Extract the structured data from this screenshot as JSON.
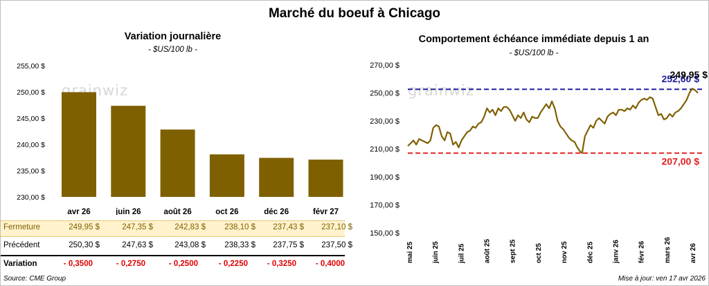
{
  "title": "Marché du boeuf à Chicago",
  "watermark": "grainwiz",
  "left_panel": {
    "title": "Variation journalière",
    "subtitle": "- $US/100 lb -"
  },
  "right_panel": {
    "title": "Comportement  échéance immédiate depuis 1 an",
    "subtitle": "- $US/100 lb -"
  },
  "table": {
    "rows": [
      {
        "label": "Fermeture",
        "values": [
          "249,95  $",
          "247,35  $",
          "242,83  $",
          "238,10  $",
          "237,43  $",
          "237,10  $"
        ]
      },
      {
        "label": "Précédent",
        "values": [
          "250,30  $",
          "247,63  $",
          "243,08  $",
          "238,33  $",
          "237,75  $",
          "237,50  $"
        ]
      },
      {
        "label": "Variation",
        "values": [
          "- 0,3500",
          "- 0,2750",
          "- 0,2500",
          "- 0,2250",
          "- 0,3250",
          "- 0,4000"
        ]
      }
    ]
  },
  "footer": {
    "source": "Source: CME Group",
    "updated": "Mise à jour: ven 17 avr 2026"
  },
  "colors": {
    "bar": "#7f6000",
    "line": "#7f6000",
    "max_line": "#1f1f9f",
    "min_line": "#e02020",
    "negative": "#e00000",
    "highlight_row": "#fff2cc"
  },
  "chart_data": [
    {
      "type": "bar",
      "categories": [
        "avr 26",
        "juin 26",
        "août 26",
        "oct 26",
        "déc 26",
        "févr 27"
      ],
      "values": [
        249.95,
        247.35,
        242.83,
        238.1,
        237.43,
        237.1
      ],
      "title": "Variation journalière",
      "subtitle": "- $US/100 lb -",
      "ylim": [
        230,
        255
      ],
      "yticks": [
        "230,00 $",
        "235,00 $",
        "240,00 $",
        "245,00 $",
        "250,00 $",
        "255,00 $"
      ],
      "grid": false
    },
    {
      "type": "line",
      "title": "Comportement  échéance immédiate depuis 1 an",
      "subtitle": "- $US/100 lb -",
      "ylim": [
        150,
        270
      ],
      "yticks": [
        "150,00 $",
        "170,00 $",
        "190,00 $",
        "210,00 $",
        "230,00 $",
        "250,00 $",
        "270,00 $"
      ],
      "xticks": [
        "mai 25",
        "juin 25",
        "juil 25",
        "août 25",
        "sept 25",
        "oct 25",
        "nov 25",
        "déc 25",
        "janv 26",
        "févr 26",
        "mars 26",
        "avr 26"
      ],
      "grid": false,
      "series": [
        {
          "values": [
            [
              0,
              212
            ],
            [
              3,
              214
            ],
            [
              6,
              216
            ],
            [
              9,
              213
            ],
            [
              12,
              217
            ],
            [
              15,
              216
            ],
            [
              18,
              215
            ],
            [
              21,
              214
            ],
            [
              24,
              216
            ],
            [
              27,
              225
            ],
            [
              30,
              227
            ],
            [
              33,
              226
            ],
            [
              36,
              219
            ],
            [
              39,
              216
            ],
            [
              42,
              222
            ],
            [
              45,
              221
            ],
            [
              48,
              213
            ],
            [
              51,
              215
            ],
            [
              54,
              211
            ],
            [
              57,
              216
            ],
            [
              60,
              219
            ],
            [
              63,
              222
            ],
            [
              66,
              223
            ],
            [
              69,
              226
            ],
            [
              72,
              225
            ],
            [
              75,
              228
            ],
            [
              78,
              229
            ],
            [
              81,
              233
            ],
            [
              84,
              239
            ],
            [
              87,
              236
            ],
            [
              90,
              238
            ],
            [
              93,
              234
            ],
            [
              96,
              239
            ],
            [
              99,
              237
            ],
            [
              102,
              240
            ],
            [
              105,
              240
            ],
            [
              108,
              238
            ],
            [
              111,
              234
            ],
            [
              114,
              230
            ],
            [
              117,
              234
            ],
            [
              120,
              232
            ],
            [
              123,
              236
            ],
            [
              126,
              231
            ],
            [
              129,
              229
            ],
            [
              132,
              233
            ],
            [
              135,
              232
            ],
            [
              138,
              232
            ],
            [
              141,
              236
            ],
            [
              144,
              239
            ],
            [
              147,
              242
            ],
            [
              150,
              239
            ],
            [
              153,
              244
            ],
            [
              156,
              239
            ],
            [
              159,
              230
            ],
            [
              162,
              226
            ],
            [
              165,
              224
            ],
            [
              168,
              221
            ],
            [
              171,
              218
            ],
            [
              174,
              216
            ],
            [
              177,
              215
            ],
            [
              180,
              211
            ],
            [
              183,
              208
            ],
            [
              185,
              207
            ],
            [
              188,
              219
            ],
            [
              191,
              223
            ],
            [
              194,
              227
            ],
            [
              197,
              225
            ],
            [
              200,
              230
            ],
            [
              203,
              232
            ],
            [
              206,
              230
            ],
            [
              209,
              228
            ],
            [
              212,
              233
            ],
            [
              215,
              235
            ],
            [
              218,
              236
            ],
            [
              221,
              234
            ],
            [
              224,
              238
            ],
            [
              227,
              238
            ],
            [
              230,
              237
            ],
            [
              233,
              239
            ],
            [
              236,
              238
            ],
            [
              239,
              241
            ],
            [
              242,
              239
            ],
            [
              245,
              243
            ],
            [
              248,
              245
            ],
            [
              251,
              246
            ],
            [
              254,
              245
            ],
            [
              257,
              247
            ],
            [
              260,
              246
            ],
            [
              263,
              240
            ],
            [
              266,
              234
            ],
            [
              269,
              235
            ],
            [
              272,
              231
            ],
            [
              275,
              232
            ],
            [
              278,
              235
            ],
            [
              281,
              233
            ],
            [
              284,
              236
            ],
            [
              287,
              237
            ],
            [
              290,
              239
            ],
            [
              293,
              242
            ],
            [
              296,
              245
            ],
            [
              299,
              250
            ],
            [
              302,
              253
            ],
            [
              305,
              252
            ],
            [
              308,
              250
            ]
          ]
        }
      ],
      "reference_lines": [
        {
          "value": 252.6,
          "label": "252,60 $",
          "color": "#1f1f9f"
        },
        {
          "value": 207.0,
          "label": "207,00 $",
          "color": "#e02020"
        }
      ],
      "last_value_label": "249,95 $"
    }
  ]
}
